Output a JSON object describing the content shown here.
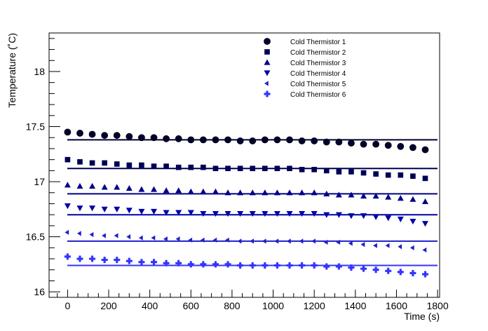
{
  "chart_data": {
    "type": "scatter",
    "title": "",
    "xlabel": "Time (s)",
    "ylabel": "Temperature (˚C)",
    "xlim": [
      -90,
      1810
    ],
    "ylim": [
      15.95,
      18.35
    ],
    "xticks": [
      0,
      200,
      400,
      600,
      800,
      1000,
      1200,
      1400,
      1600,
      1800
    ],
    "yticks": [
      16,
      16.5,
      17,
      17.5,
      18
    ],
    "ytick_labels": [
      "16",
      "16.5",
      "17",
      "17.5",
      "18"
    ],
    "grid": false,
    "legend_position": "top-right",
    "x": [
      0,
      60,
      120,
      180,
      240,
      300,
      360,
      420,
      480,
      540,
      600,
      660,
      720,
      780,
      840,
      900,
      960,
      1020,
      1080,
      1140,
      1200,
      1260,
      1320,
      1380,
      1440,
      1500,
      1560,
      1620,
      1680,
      1740
    ],
    "series": [
      {
        "name": "Cold Thermistor 1",
        "marker": "circle",
        "color": "#000033",
        "values": [
          17.45,
          17.44,
          17.43,
          17.42,
          17.42,
          17.41,
          17.4,
          17.4,
          17.39,
          17.39,
          17.38,
          17.38,
          17.38,
          17.38,
          17.37,
          17.37,
          17.38,
          17.38,
          17.38,
          17.37,
          17.37,
          17.36,
          17.36,
          17.35,
          17.34,
          17.34,
          17.33,
          17.32,
          17.31,
          17.29
        ],
        "reference": 17.38
      },
      {
        "name": "Cold Thermistor 2",
        "marker": "square",
        "color": "#000055",
        "values": [
          17.2,
          17.18,
          17.17,
          17.17,
          17.16,
          17.15,
          17.15,
          17.14,
          17.14,
          17.13,
          17.13,
          17.13,
          17.12,
          17.12,
          17.12,
          17.12,
          17.12,
          17.12,
          17.12,
          17.11,
          17.11,
          17.1,
          17.09,
          17.09,
          17.08,
          17.07,
          17.06,
          17.06,
          17.05,
          17.03
        ],
        "reference": 17.12
      },
      {
        "name": "Cold Thermistor 3",
        "marker": "triangle-up",
        "color": "#00008b",
        "values": [
          16.97,
          16.96,
          16.96,
          16.95,
          16.95,
          16.94,
          16.93,
          16.93,
          16.92,
          16.92,
          16.91,
          16.91,
          16.91,
          16.9,
          16.9,
          16.9,
          16.9,
          16.9,
          16.9,
          16.9,
          16.9,
          16.89,
          16.88,
          16.88,
          16.87,
          16.87,
          16.86,
          16.85,
          16.84,
          16.82
        ],
        "reference": 16.89
      },
      {
        "name": "Cold Thermistor 4",
        "marker": "triangle-down",
        "color": "#0000aa",
        "values": [
          16.78,
          16.76,
          16.76,
          16.75,
          16.75,
          16.74,
          16.73,
          16.73,
          16.72,
          16.72,
          16.72,
          16.71,
          16.71,
          16.71,
          16.71,
          16.71,
          16.71,
          16.71,
          16.71,
          16.71,
          16.71,
          16.7,
          16.7,
          16.69,
          16.69,
          16.68,
          16.67,
          16.66,
          16.64,
          16.62
        ],
        "reference": 16.7
      },
      {
        "name": "Cold Thermistor 5",
        "marker": "diamond-left",
        "color": "#2020cc",
        "values": [
          16.54,
          16.53,
          16.52,
          16.51,
          16.51,
          16.5,
          16.49,
          16.49,
          16.48,
          16.48,
          16.47,
          16.47,
          16.47,
          16.47,
          16.46,
          16.46,
          16.46,
          16.46,
          16.46,
          16.46,
          16.46,
          16.45,
          16.45,
          16.44,
          16.43,
          16.42,
          16.42,
          16.41,
          16.4,
          16.38
        ],
        "reference": 16.46
      },
      {
        "name": "Cold Thermistor 6",
        "marker": "cross",
        "color": "#3333ff",
        "values": [
          16.32,
          16.3,
          16.3,
          16.29,
          16.29,
          16.28,
          16.27,
          16.27,
          16.26,
          16.26,
          16.25,
          16.25,
          16.25,
          16.25,
          16.24,
          16.24,
          16.24,
          16.24,
          16.24,
          16.24,
          16.24,
          16.23,
          16.23,
          16.22,
          16.21,
          16.2,
          16.19,
          16.18,
          16.17,
          16.16
        ],
        "reference": 16.24
      }
    ]
  }
}
